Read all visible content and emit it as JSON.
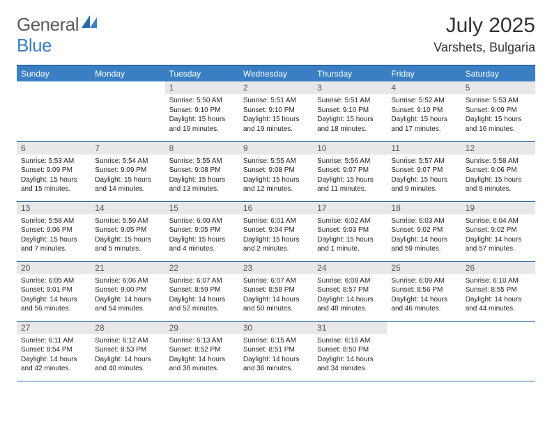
{
  "logo": {
    "general": "General",
    "blue": "Blue"
  },
  "title": {
    "monthYear": "July 2025",
    "location": "Varshets, Bulgaria"
  },
  "colors": {
    "headerBlue": "#3a7fc4",
    "borderBlue": "#2c6aa8",
    "dayNumBg": "#e8e8e8",
    "textGray": "#5a5a5a"
  },
  "dayNames": [
    "Sunday",
    "Monday",
    "Tuesday",
    "Wednesday",
    "Thursday",
    "Friday",
    "Saturday"
  ],
  "weeks": [
    [
      null,
      null,
      {
        "n": "1",
        "sr": "5:50 AM",
        "ss": "9:10 PM",
        "dl": "15 hours and 19 minutes."
      },
      {
        "n": "2",
        "sr": "5:51 AM",
        "ss": "9:10 PM",
        "dl": "15 hours and 19 minutes."
      },
      {
        "n": "3",
        "sr": "5:51 AM",
        "ss": "9:10 PM",
        "dl": "15 hours and 18 minutes."
      },
      {
        "n": "4",
        "sr": "5:52 AM",
        "ss": "9:10 PM",
        "dl": "15 hours and 17 minutes."
      },
      {
        "n": "5",
        "sr": "5:53 AM",
        "ss": "9:09 PM",
        "dl": "15 hours and 16 minutes."
      }
    ],
    [
      {
        "n": "6",
        "sr": "5:53 AM",
        "ss": "9:09 PM",
        "dl": "15 hours and 15 minutes."
      },
      {
        "n": "7",
        "sr": "5:54 AM",
        "ss": "9:09 PM",
        "dl": "15 hours and 14 minutes."
      },
      {
        "n": "8",
        "sr": "5:55 AM",
        "ss": "9:08 PM",
        "dl": "15 hours and 13 minutes."
      },
      {
        "n": "9",
        "sr": "5:55 AM",
        "ss": "9:08 PM",
        "dl": "15 hours and 12 minutes."
      },
      {
        "n": "10",
        "sr": "5:56 AM",
        "ss": "9:07 PM",
        "dl": "15 hours and 11 minutes."
      },
      {
        "n": "11",
        "sr": "5:57 AM",
        "ss": "9:07 PM",
        "dl": "15 hours and 9 minutes."
      },
      {
        "n": "12",
        "sr": "5:58 AM",
        "ss": "9:06 PM",
        "dl": "15 hours and 8 minutes."
      }
    ],
    [
      {
        "n": "13",
        "sr": "5:58 AM",
        "ss": "9:06 PM",
        "dl": "15 hours and 7 minutes."
      },
      {
        "n": "14",
        "sr": "5:59 AM",
        "ss": "9:05 PM",
        "dl": "15 hours and 5 minutes."
      },
      {
        "n": "15",
        "sr": "6:00 AM",
        "ss": "9:05 PM",
        "dl": "15 hours and 4 minutes."
      },
      {
        "n": "16",
        "sr": "6:01 AM",
        "ss": "9:04 PM",
        "dl": "15 hours and 2 minutes."
      },
      {
        "n": "17",
        "sr": "6:02 AM",
        "ss": "9:03 PM",
        "dl": "15 hours and 1 minute."
      },
      {
        "n": "18",
        "sr": "6:03 AM",
        "ss": "9:02 PM",
        "dl": "14 hours and 59 minutes."
      },
      {
        "n": "19",
        "sr": "6:04 AM",
        "ss": "9:02 PM",
        "dl": "14 hours and 57 minutes."
      }
    ],
    [
      {
        "n": "20",
        "sr": "6:05 AM",
        "ss": "9:01 PM",
        "dl": "14 hours and 56 minutes."
      },
      {
        "n": "21",
        "sr": "6:06 AM",
        "ss": "9:00 PM",
        "dl": "14 hours and 54 minutes."
      },
      {
        "n": "22",
        "sr": "6:07 AM",
        "ss": "8:59 PM",
        "dl": "14 hours and 52 minutes."
      },
      {
        "n": "23",
        "sr": "6:07 AM",
        "ss": "8:58 PM",
        "dl": "14 hours and 50 minutes."
      },
      {
        "n": "24",
        "sr": "6:08 AM",
        "ss": "8:57 PM",
        "dl": "14 hours and 48 minutes."
      },
      {
        "n": "25",
        "sr": "6:09 AM",
        "ss": "8:56 PM",
        "dl": "14 hours and 46 minutes."
      },
      {
        "n": "26",
        "sr": "6:10 AM",
        "ss": "8:55 PM",
        "dl": "14 hours and 44 minutes."
      }
    ],
    [
      {
        "n": "27",
        "sr": "6:11 AM",
        "ss": "8:54 PM",
        "dl": "14 hours and 42 minutes."
      },
      {
        "n": "28",
        "sr": "6:12 AM",
        "ss": "8:53 PM",
        "dl": "14 hours and 40 minutes."
      },
      {
        "n": "29",
        "sr": "6:13 AM",
        "ss": "8:52 PM",
        "dl": "14 hours and 38 minutes."
      },
      {
        "n": "30",
        "sr": "6:15 AM",
        "ss": "8:51 PM",
        "dl": "14 hours and 36 minutes."
      },
      {
        "n": "31",
        "sr": "6:16 AM",
        "ss": "8:50 PM",
        "dl": "14 hours and 34 minutes."
      },
      null,
      null
    ]
  ],
  "labels": {
    "sunrise": "Sunrise:",
    "sunset": "Sunset:",
    "daylight": "Daylight:"
  }
}
